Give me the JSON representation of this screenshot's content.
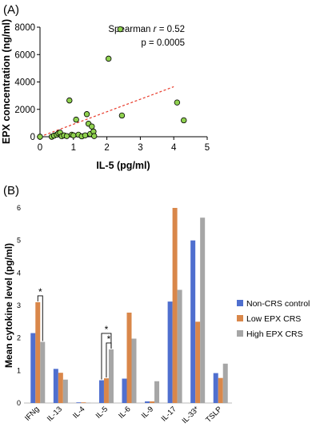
{
  "panels": {
    "a_label": "(A)",
    "b_label": "(B)"
  },
  "chart_data": [
    {
      "type": "scatter",
      "xlabel": "IL-5 (pg/ml)",
      "ylabel": "EPX concentration (ng/ml)",
      "xlim": [
        0,
        5
      ],
      "ylim": [
        0,
        8000
      ],
      "xticks": [
        0,
        1,
        2,
        3,
        4,
        5
      ],
      "yticks": [
        0,
        2000,
        4000,
        6000,
        8000
      ],
      "annotation": {
        "prefix": "Spearman ",
        "r_symbol": "r",
        "r_value": " = 0.52",
        "p": "p = 0.0005"
      },
      "point_color": "#8fd14f",
      "trend_color": "#e83a2a",
      "trendline": {
        "x": [
          0,
          4.0
        ],
        "y": [
          0,
          3650
        ]
      },
      "points": [
        {
          "x": 0.0,
          "y": 0
        },
        {
          "x": 0.35,
          "y": 0
        },
        {
          "x": 0.42,
          "y": 80
        },
        {
          "x": 0.5,
          "y": 150
        },
        {
          "x": 0.55,
          "y": 250
        },
        {
          "x": 0.6,
          "y": 300
        },
        {
          "x": 0.65,
          "y": 40
        },
        {
          "x": 0.72,
          "y": 100
        },
        {
          "x": 0.8,
          "y": 50
        },
        {
          "x": 0.88,
          "y": 2650
        },
        {
          "x": 0.95,
          "y": 150
        },
        {
          "x": 1.0,
          "y": 100
        },
        {
          "x": 1.08,
          "y": 1250
        },
        {
          "x": 1.15,
          "y": 150
        },
        {
          "x": 1.25,
          "y": 30
        },
        {
          "x": 1.35,
          "y": 100
        },
        {
          "x": 1.4,
          "y": 1650
        },
        {
          "x": 1.45,
          "y": 950
        },
        {
          "x": 1.5,
          "y": 200
        },
        {
          "x": 1.55,
          "y": 750
        },
        {
          "x": 1.6,
          "y": 380
        },
        {
          "x": 1.62,
          "y": 50
        },
        {
          "x": 2.05,
          "y": 5700
        },
        {
          "x": 2.4,
          "y": 7850
        },
        {
          "x": 2.45,
          "y": 1550
        },
        {
          "x": 4.1,
          "y": 2500
        },
        {
          "x": 4.3,
          "y": 1200
        }
      ]
    },
    {
      "type": "bar",
      "ylabel": "Mean cytokine level (pg/ml)",
      "ylim": [
        0,
        6
      ],
      "yticks": [
        0,
        1,
        2,
        3,
        4,
        5,
        6
      ],
      "categories": [
        "IFNg",
        "IL-13",
        "IL-4",
        "IL-5",
        "IL-6",
        "IL-9",
        "IL-17",
        "IL-33*",
        "TSLP"
      ],
      "series": [
        {
          "name": "Non-CRS control",
          "color": "#4f6fcf",
          "values": [
            2.15,
            1.05,
            0.02,
            0.7,
            0.75,
            0.05,
            3.12,
            5.0,
            0.92
          ]
        },
        {
          "name": "Low EPX CRS",
          "color": "#d9874a",
          "values": [
            3.1,
            0.93,
            0.02,
            0.76,
            2.78,
            0.05,
            6.0,
            2.5,
            0.77
          ]
        },
        {
          "name": "High EPX CRS",
          "color": "#a6a6a6",
          "values": [
            1.88,
            0.72,
            0.01,
            1.65,
            1.98,
            0.67,
            3.48,
            5.7,
            1.21
          ]
        }
      ],
      "significance": [
        {
          "category": "IFNg",
          "from_series": 1,
          "to_series": 2,
          "label": "*"
        },
        {
          "category": "IL-5",
          "from_series": 0,
          "to_series": 2,
          "label": "*"
        },
        {
          "category": "IL-5",
          "from_series": 1,
          "to_series": 2,
          "label": "*"
        }
      ],
      "legend_position": "right"
    }
  ]
}
